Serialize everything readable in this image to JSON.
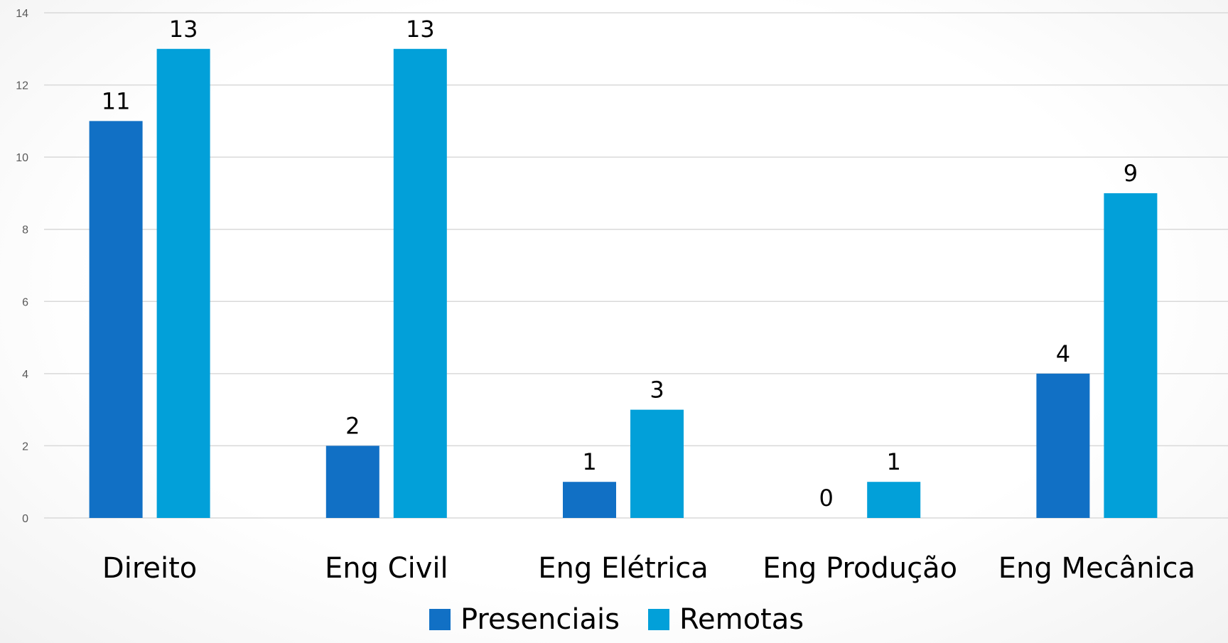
{
  "chart_data": {
    "type": "bar",
    "categories": [
      "Direito",
      "Eng Civil",
      "Eng Elétrica",
      "Eng Produção",
      "Eng Mecânica"
    ],
    "series": [
      {
        "name": "Presenciais",
        "values": [
          11,
          2,
          1,
          0,
          4
        ],
        "color": "#1170c5"
      },
      {
        "name": "Remotas",
        "values": [
          13,
          13,
          3,
          1,
          9
        ],
        "color": "#02a0d9"
      }
    ],
    "yticks": [
      "0",
      "2",
      "4",
      "6",
      "8",
      "10",
      "12",
      "14"
    ],
    "ylim": [
      0,
      14
    ],
    "grid": true,
    "legend_position": "bottom",
    "data_labels": true
  }
}
